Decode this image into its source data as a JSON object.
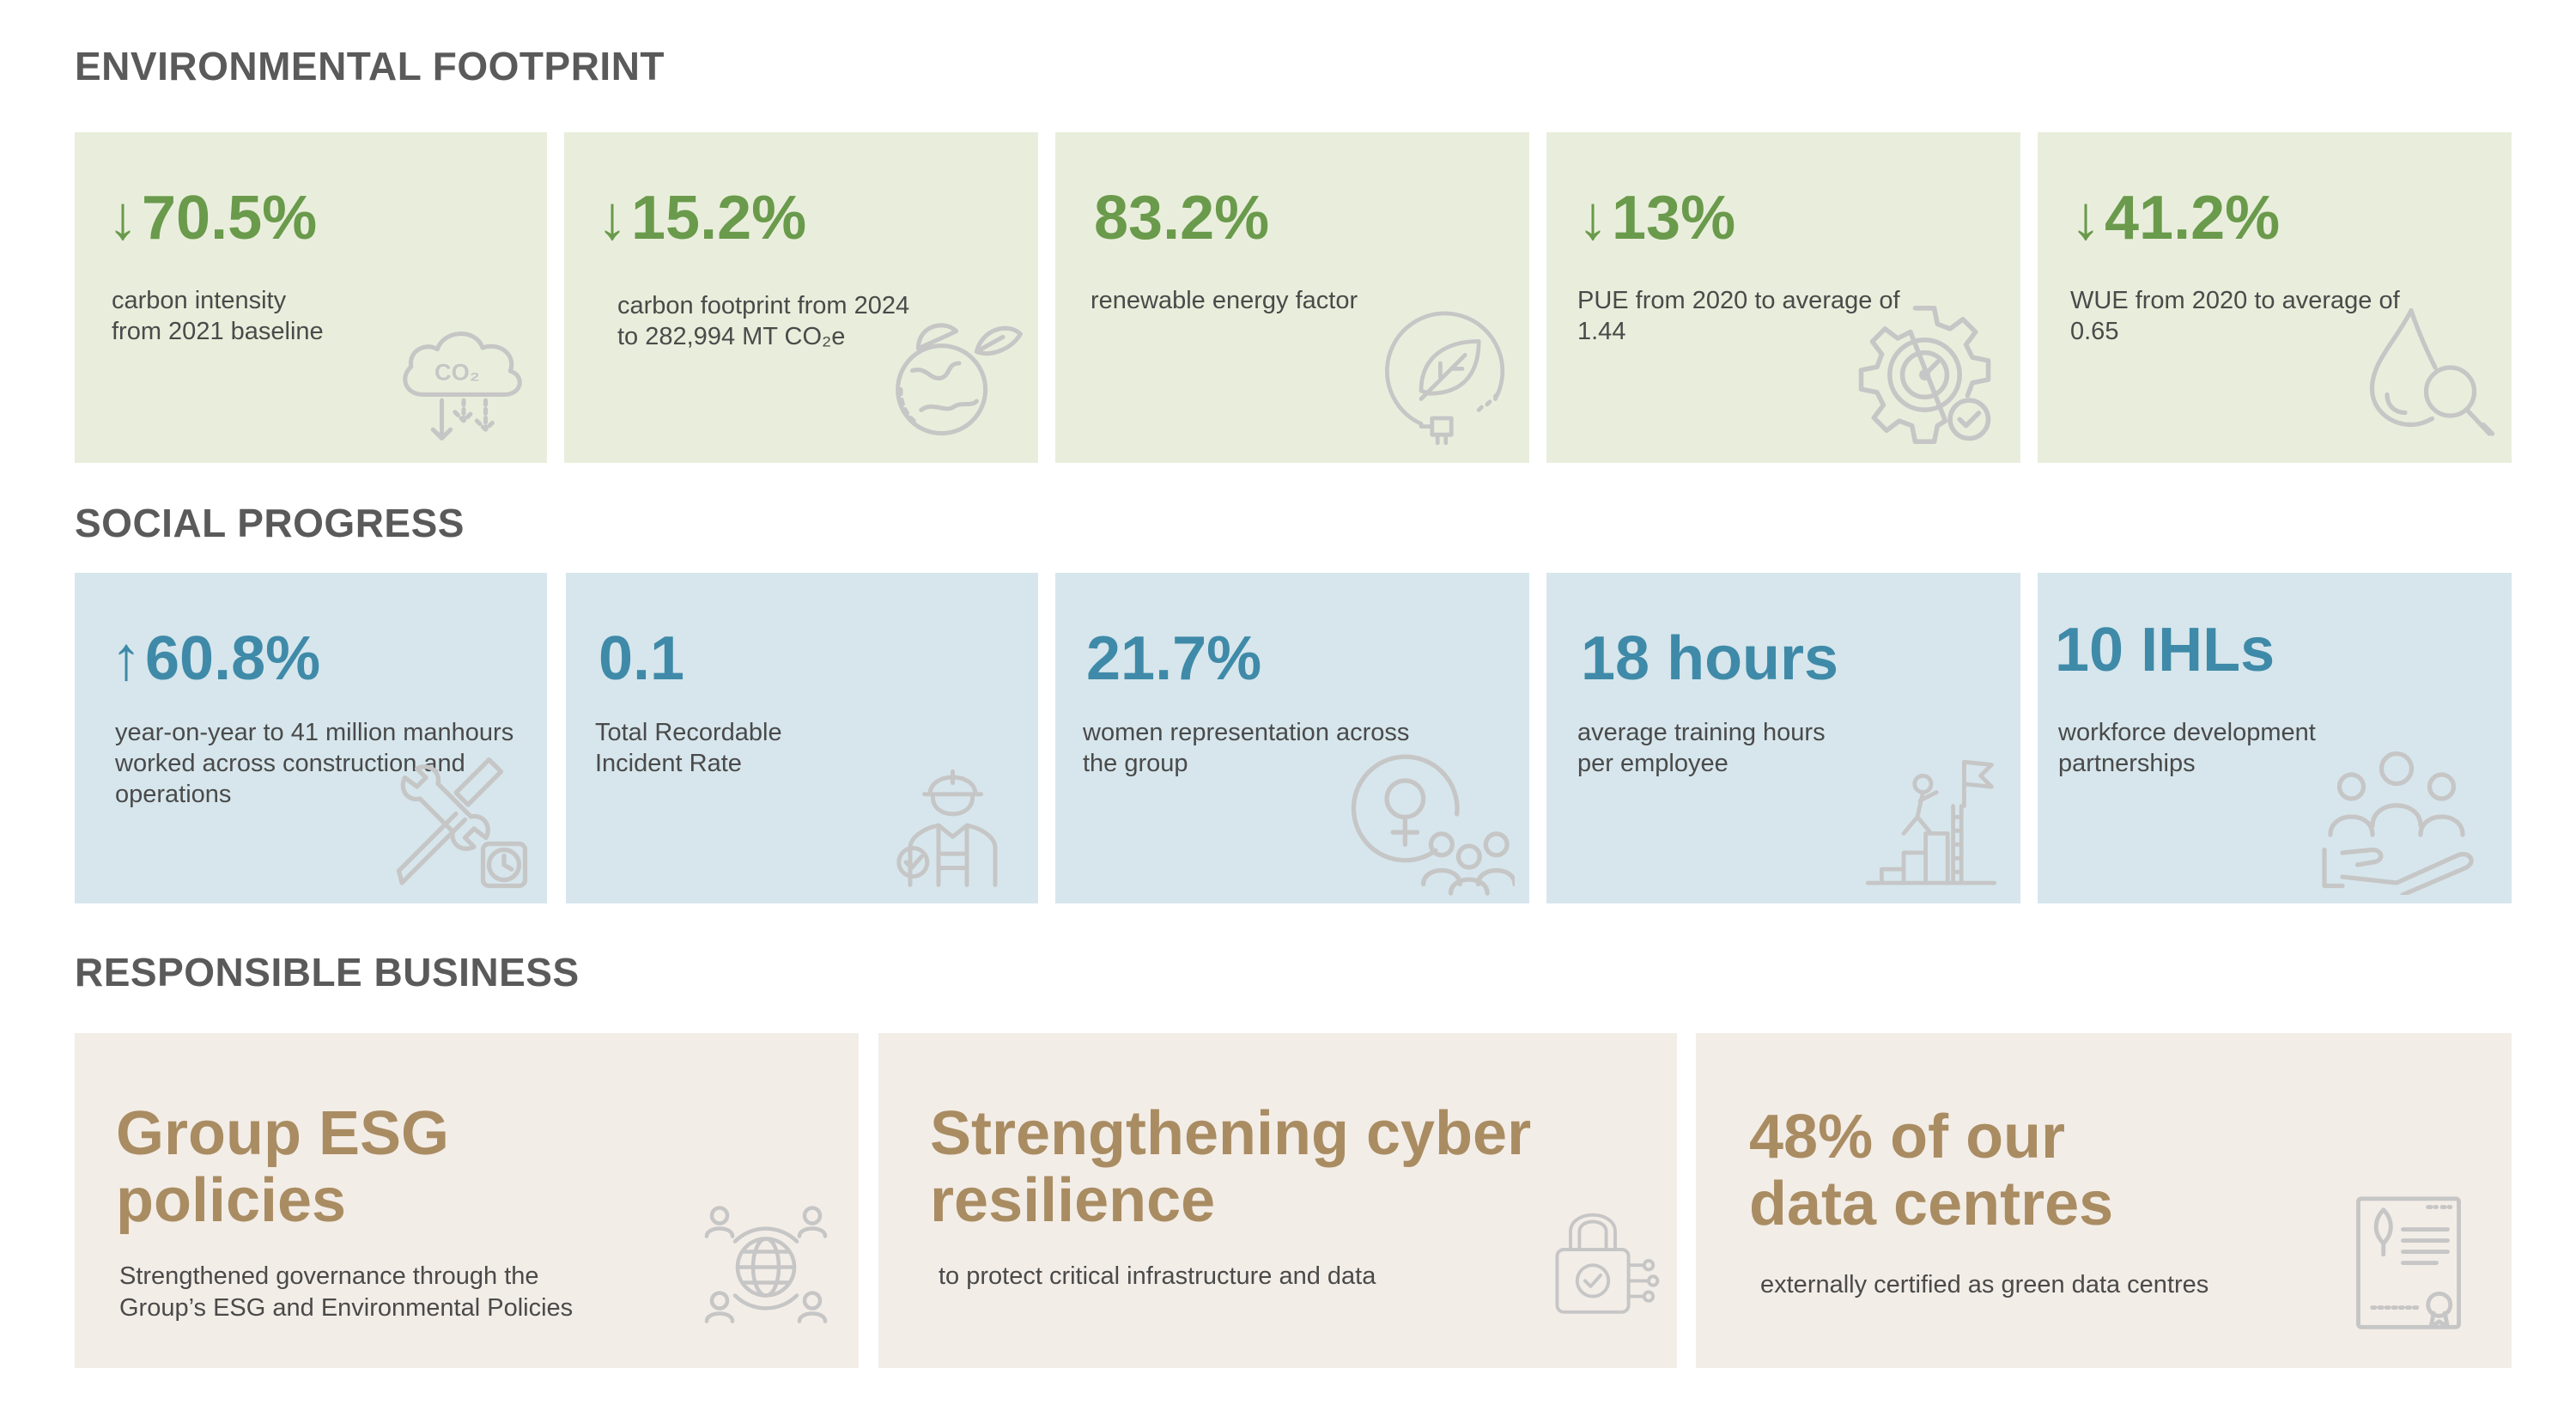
{
  "sections": {
    "environment": {
      "title": "ENVIRONMENTAL FOOTPRINT",
      "cards": [
        {
          "arrow": "↓",
          "value": "70.5%",
          "desc": [
            "carbon intensity",
            "from 2021 baseline"
          ],
          "icon": "co2-cloud-icon"
        },
        {
          "arrow": "↓",
          "value": "15.2%",
          "desc": [
            "carbon footprint from 2024",
            "to 282,994 MT CO₂e"
          ],
          "icon": "globe-leaf-icon"
        },
        {
          "arrow": "",
          "value": "83.2%",
          "desc": [
            "renewable energy factor"
          ],
          "icon": "leaf-plug-icon"
        },
        {
          "arrow": "↓",
          "value": "13%",
          "desc": [
            "PUE from 2020 to average of",
            "1.44"
          ],
          "icon": "gear-gauge-icon"
        },
        {
          "arrow": "↓",
          "value": "41.2%",
          "desc": [
            "WUE from 2020 to average of",
            "0.65"
          ],
          "icon": "water-drop-magnifier-icon"
        }
      ]
    },
    "social": {
      "title": "SOCIAL PROGRESS",
      "cards": [
        {
          "arrow": "↑",
          "value": "60.8%",
          "desc": [
            "year-on-year to 41 million manhours",
            "worked across construction and",
            "operations"
          ],
          "icon": "tools-clock-icon"
        },
        {
          "arrow": "",
          "value": "0.1",
          "desc": [
            "Total Recordable",
            "Incident Rate"
          ],
          "icon": "safety-worker-icon"
        },
        {
          "arrow": "",
          "value": "21.7%",
          "desc": [
            "women representation across",
            "the group"
          ],
          "icon": "female-group-icon"
        },
        {
          "arrow": "",
          "value": "18 hours",
          "desc": [
            "average training hours",
            "per employee"
          ],
          "icon": "climbing-steps-flag-icon"
        },
        {
          "arrow": "",
          "value": "10 IHLs",
          "desc": [
            "workforce development",
            "partnerships"
          ],
          "icon": "people-hand-icon"
        }
      ]
    },
    "business": {
      "title": "RESPONSIBLE BUSINESS",
      "cards": [
        {
          "value": [
            "Group ESG",
            "policies"
          ],
          "desc": [
            "Strengthened governance through the",
            "Group’s ESG and Environmental Policies"
          ],
          "icon": "globe-people-icon"
        },
        {
          "value": [
            "Strengthening cyber",
            "resilience"
          ],
          "desc": [
            "to protect critical infrastructure and data"
          ],
          "icon": "padlock-circuit-icon"
        },
        {
          "value": [
            "48% of our",
            "data centres"
          ],
          "desc": [
            "externally certified as green data centres"
          ],
          "icon": "certificate-leaf-icon"
        }
      ]
    }
  },
  "colors": {
    "environment_bg": "#e9eedc",
    "environment_accent": "#6a9a4b",
    "social_bg": "#d6e6ec",
    "social_accent": "#3f8aa8",
    "business_bg": "#f3ede7",
    "business_accent": "#a98c62",
    "heading": "#5a5a5a"
  }
}
